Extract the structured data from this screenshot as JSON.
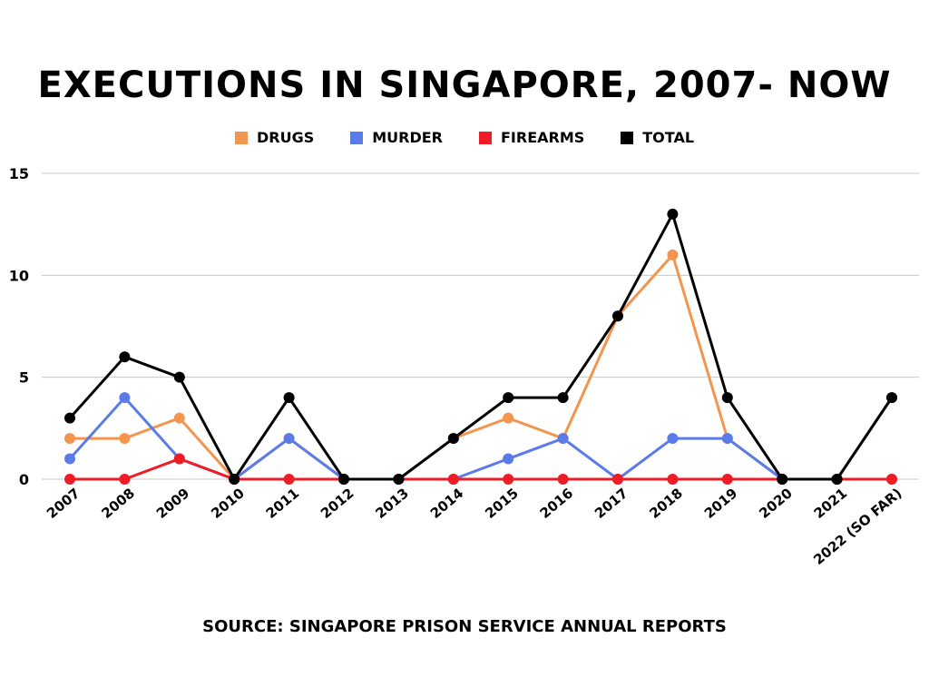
{
  "title": "EXECUTIONS IN SINGAPORE, 2007- NOW",
  "source": "SOURCE: SINGAPORE PRISON SERVICE ANNUAL REPORTS",
  "colors": {
    "drugs": "#F4954F",
    "murder": "#5B7BE9",
    "firearms": "#EE1C25",
    "total": "#000000",
    "grid": "#c8c8c8"
  },
  "chart_data": {
    "type": "line",
    "title": "EXECUTIONS IN SINGAPORE, 2007- NOW",
    "xlabel": "",
    "ylabel": "",
    "ylim": [
      0,
      15
    ],
    "yticks": [
      0,
      5,
      10,
      15
    ],
    "grid": true,
    "legend_position": "top",
    "categories": [
      "2007",
      "2008",
      "2009",
      "2010",
      "2011",
      "2012",
      "2013",
      "2014",
      "2015",
      "2016",
      "2017",
      "2018",
      "2019",
      "2020",
      "2021",
      "2022 (SO FAR)"
    ],
    "series": [
      {
        "name": "DRUGS",
        "color": "#F4954F",
        "values": [
          2,
          2,
          3,
          0,
          2,
          0,
          0,
          2,
          3,
          2,
          8,
          11,
          2,
          0,
          0,
          4
        ]
      },
      {
        "name": "MURDER",
        "color": "#5B7BE9",
        "values": [
          1,
          4,
          1,
          0,
          2,
          0,
          0,
          0,
          1,
          2,
          0,
          2,
          2,
          0,
          0,
          0
        ]
      },
      {
        "name": "FIREARMS",
        "color": "#EE1C25",
        "values": [
          0,
          0,
          1,
          0,
          0,
          0,
          0,
          0,
          0,
          0,
          0,
          0,
          0,
          0,
          0,
          0
        ]
      },
      {
        "name": "TOTAL",
        "color": "#000000",
        "values": [
          3,
          6,
          5,
          0,
          4,
          0,
          0,
          2,
          4,
          4,
          8,
          13,
          4,
          0,
          0,
          4
        ]
      }
    ]
  }
}
